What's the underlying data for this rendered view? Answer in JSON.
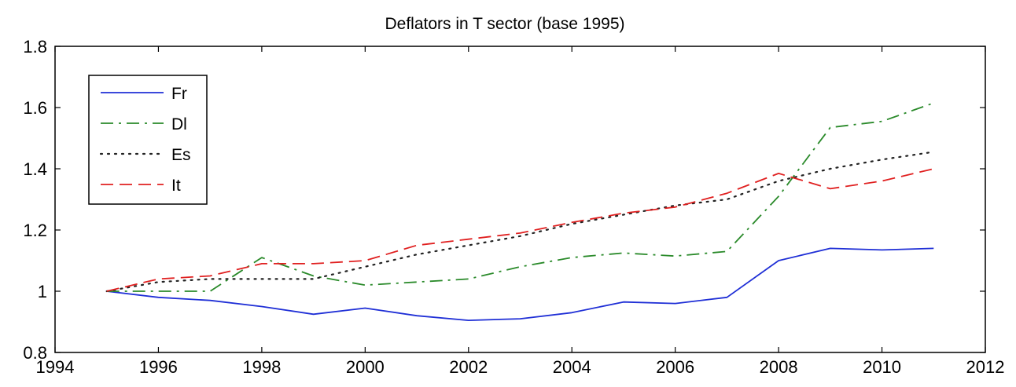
{
  "chart_data": {
    "type": "line",
    "title": "Deflators in T sector (base 1995)",
    "xlabel": "",
    "ylabel": "",
    "xlim": [
      1994,
      2012
    ],
    "ylim": [
      0.8,
      1.8
    ],
    "xticks": [
      1994,
      1996,
      1998,
      2000,
      2002,
      2004,
      2006,
      2008,
      2010,
      2012
    ],
    "yticks": [
      0.8,
      1,
      1.2,
      1.4,
      1.6,
      1.8
    ],
    "xtick_labels": [
      "1994",
      "1996",
      "1998",
      "2000",
      "2002",
      "2004",
      "2006",
      "2008",
      "2010",
      "2012"
    ],
    "ytick_labels": [
      "0.8",
      "1",
      "1.2",
      "1.4",
      "1.6",
      "1.8"
    ],
    "grid": false,
    "legend_position": "top-left",
    "x": [
      1995,
      1996,
      1997,
      1998,
      1999,
      2000,
      2001,
      2002,
      2003,
      2004,
      2005,
      2006,
      2007,
      2008,
      2009,
      2010,
      2011
    ],
    "series": [
      {
        "name": "Fr",
        "color": "#1f2fd6",
        "style": "solid",
        "values": [
          1.0,
          0.98,
          0.97,
          0.95,
          0.925,
          0.945,
          0.92,
          0.905,
          0.91,
          0.93,
          0.965,
          0.96,
          0.98,
          1.1,
          1.14,
          1.135,
          1.14
        ]
      },
      {
        "name": "Dl",
        "color": "#2a8a2a",
        "style": "dashdot",
        "values": [
          1.0,
          1.0,
          1.0,
          1.11,
          1.05,
          1.02,
          1.03,
          1.04,
          1.08,
          1.11,
          1.125,
          1.115,
          1.13,
          1.31,
          1.535,
          1.555,
          1.615
        ]
      },
      {
        "name": "Es",
        "color": "#222222",
        "style": "dotted",
        "values": [
          1.0,
          1.03,
          1.04,
          1.04,
          1.04,
          1.08,
          1.12,
          1.15,
          1.18,
          1.22,
          1.25,
          1.28,
          1.3,
          1.36,
          1.4,
          1.43,
          1.455
        ]
      },
      {
        "name": "It",
        "color": "#e02020",
        "style": "dashed",
        "values": [
          1.0,
          1.04,
          1.05,
          1.09,
          1.09,
          1.1,
          1.15,
          1.17,
          1.19,
          1.225,
          1.255,
          1.275,
          1.32,
          1.385,
          1.335,
          1.36,
          1.4
        ]
      }
    ]
  }
}
